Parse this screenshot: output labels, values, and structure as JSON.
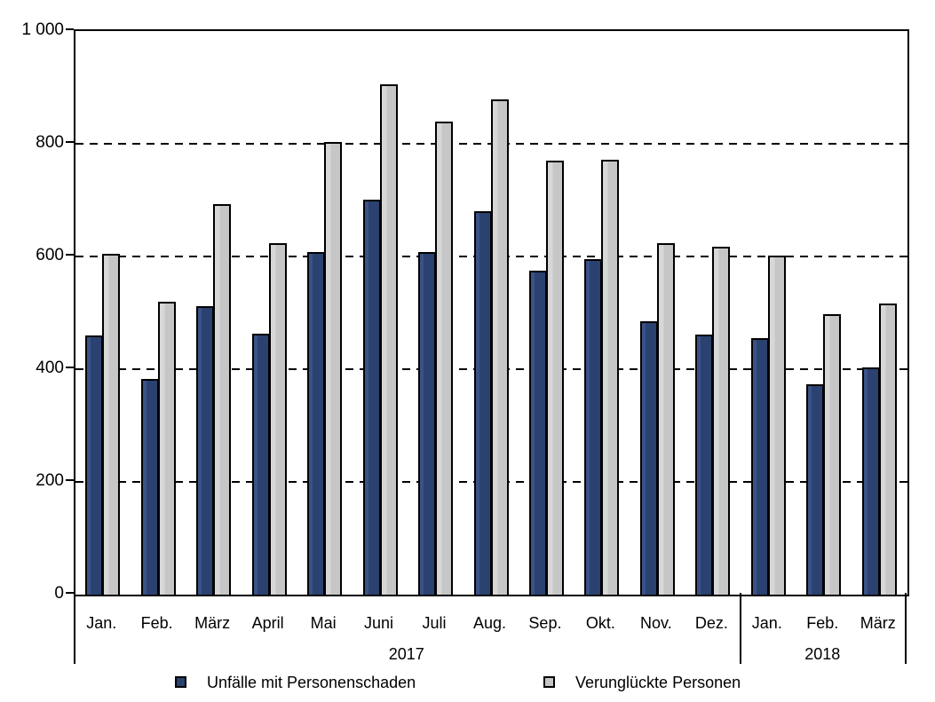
{
  "chart_data": {
    "type": "bar",
    "title": "",
    "categories": [
      "Jan.",
      "Feb.",
      "März",
      "April",
      "Mai",
      "Juni",
      "Juli",
      "Aug.",
      "Sep.",
      "Okt.",
      "Nov.",
      "Dez.",
      "Jan.",
      "Feb.",
      "März"
    ],
    "category_groups": [
      {
        "label": "2017",
        "span": 12
      },
      {
        "label": "2018",
        "span": 3
      }
    ],
    "series": [
      {
        "name": "Unfälle mit Personenschaden",
        "color": "#2b4170",
        "values": [
          460,
          383,
          512,
          463,
          608,
          700,
          608,
          680,
          575,
          595,
          485,
          462,
          455,
          373,
          403
        ]
      },
      {
        "name": "Verunglückte Personen",
        "color": "#c6c6c6",
        "values": [
          605,
          520,
          693,
          624,
          803,
          905,
          840,
          878,
          770,
          772,
          624,
          618,
          602,
          497,
          517
        ]
      }
    ],
    "xlabel": "",
    "ylabel": "",
    "ylim": [
      0,
      1000
    ],
    "yticks": [
      0,
      200,
      400,
      600,
      800,
      1000
    ],
    "ytick_labels": [
      "0",
      "200",
      "400",
      "600",
      "800",
      "1 000"
    ],
    "gridlines": [
      200,
      400,
      600,
      800
    ],
    "grid_style": "dashed",
    "legend_position": "bottom",
    "colors": {
      "series1": "#2b4170",
      "series2": "#c6c6c6",
      "axis": "#000000",
      "background": "#ffffff"
    }
  }
}
